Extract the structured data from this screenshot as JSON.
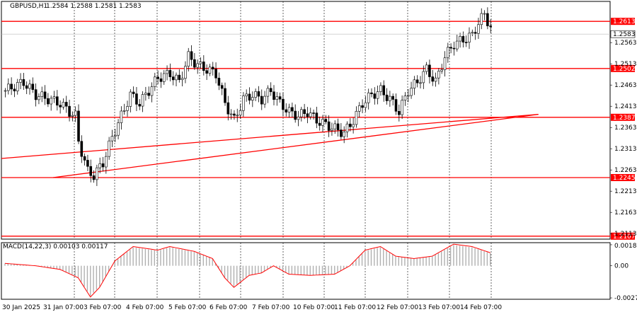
{
  "chart_data": [
    {
      "type": "candlestick",
      "title": "GBPUSD,H1",
      "ohlc_text": "1.2584 1.2588 1.2581 1.2583",
      "current_price": "1.2583",
      "y_ticks": [
        "1.2613",
        "1.2583",
        "1.2563",
        "1.2513",
        "1.2502",
        "1.2463",
        "1.2413",
        "1.2387",
        "1.2363",
        "1.2313",
        "1.2263",
        "1.2245",
        "1.2213",
        "1.2163",
        "1.2113",
        "1.2107"
      ],
      "ylim": [
        1.21,
        1.266
      ],
      "x_tick_labels": [
        "30 Jan 2025",
        "31 Jan 07:00",
        "3 Feb 07:00",
        "4 Feb 07:00",
        "5 Feb 07:00",
        "6 Feb 07:00",
        "7 Feb 07:00",
        "10 Feb 07:00",
        "11 Feb 07:00",
        "12 Feb 07:00",
        "13 Feb 07:00",
        "14 Feb 07:00"
      ],
      "horizontal_levels": [
        {
          "label": "1.2613",
          "value": 1.2613
        },
        {
          "label": "1.2502",
          "value": 1.2502
        },
        {
          "label": "1.2387",
          "value": 1.2387
        },
        {
          "label": "1.2245",
          "value": 1.2245
        },
        {
          "label": "1.2107",
          "value": 1.2107
        }
      ],
      "trendlines": [
        {
          "from": {
            "bar": 0,
            "price": 1.229
          },
          "to": {
            "bar": 175,
            "price": 1.2394
          }
        },
        {
          "from": {
            "bar": 16,
            "price": 1.2245
          },
          "to": {
            "bar": 175,
            "price": 1.2394
          }
        }
      ],
      "close_path": [
        [
          0,
          1.245
        ],
        [
          6,
          1.247
        ],
        [
          10,
          1.244
        ],
        [
          14,
          1.243
        ],
        [
          18,
          1.242
        ],
        [
          21,
          1.24
        ],
        [
          23,
          1.239
        ],
        [
          24,
          1.233
        ],
        [
          27,
          1.226
        ],
        [
          29,
          1.225
        ],
        [
          32,
          1.228
        ],
        [
          35,
          1.234
        ],
        [
          38,
          1.239
        ],
        [
          41,
          1.244
        ],
        [
          44,
          1.242
        ],
        [
          47,
          1.245
        ],
        [
          50,
          1.248
        ],
        [
          54,
          1.249
        ],
        [
          57,
          1.247
        ],
        [
          60,
          1.253
        ],
        [
          63,
          1.251
        ],
        [
          66,
          1.25
        ],
        [
          69,
          1.249
        ],
        [
          72,
          1.242
        ],
        [
          75,
          1.238
        ],
        [
          78,
          1.243
        ],
        [
          81,
          1.244
        ],
        [
          84,
          1.243
        ],
        [
          87,
          1.245
        ],
        [
          90,
          1.242
        ],
        [
          93,
          1.24
        ],
        [
          96,
          1.239
        ],
        [
          99,
          1.24
        ],
        [
          102,
          1.238
        ],
        [
          105,
          1.237
        ],
        [
          108,
          1.236
        ],
        [
          111,
          1.235
        ],
        [
          114,
          1.238
        ],
        [
          117,
          1.242
        ],
        [
          120,
          1.244
        ],
        [
          123,
          1.245
        ],
        [
          126,
          1.243
        ],
        [
          129,
          1.24
        ],
        [
          132,
          1.245
        ],
        [
          135,
          1.247
        ],
        [
          138,
          1.25
        ],
        [
          141,
          1.247
        ],
        [
          144,
          1.253
        ],
        [
          147,
          1.256
        ],
        [
          150,
          1.257
        ],
        [
          153,
          1.258
        ],
        [
          155,
          1.261
        ],
        [
          157,
          1.263
        ],
        [
          160,
          1.2583
        ]
      ],
      "bar_count": 160
    },
    {
      "type": "histogram",
      "title": "MACD(14,22,3) 0.00103 0.00117",
      "y_ticks": [
        "0.00182",
        "0.00",
        "-0.00278"
      ],
      "ylim": [
        -0.0029,
        0.002
      ],
      "values_path": [
        [
          0,
          0.0002
        ],
        [
          10,
          0.0
        ],
        [
          18,
          -0.0003
        ],
        [
          24,
          -0.001
        ],
        [
          28,
          -0.0026
        ],
        [
          31,
          -0.0018
        ],
        [
          36,
          0.0004
        ],
        [
          42,
          0.0016
        ],
        [
          50,
          0.0013
        ],
        [
          54,
          0.0016
        ],
        [
          62,
          0.0012
        ],
        [
          68,
          0.0006
        ],
        [
          72,
          -0.001
        ],
        [
          75,
          -0.0018
        ],
        [
          80,
          -0.0008
        ],
        [
          84,
          -0.0006
        ],
        [
          88,
          0.0
        ],
        [
          93,
          -0.0007
        ],
        [
          100,
          -0.0008
        ],
        [
          108,
          -0.0007
        ],
        [
          113,
          0.0
        ],
        [
          118,
          0.0013
        ],
        [
          123,
          0.0016
        ],
        [
          128,
          0.0008
        ],
        [
          134,
          0.0006
        ],
        [
          140,
          0.0008
        ],
        [
          147,
          0.0018
        ],
        [
          153,
          0.0016
        ],
        [
          160,
          0.001
        ]
      ]
    }
  ],
  "colors": {
    "candle": "#000000",
    "level_line": "#ff0000",
    "level_label_bg": "#ff0000",
    "level_label_text": "#ffffff",
    "signal_line": "#ff0000",
    "histogram": "#b0b0b0",
    "grid": "#000000",
    "price_tag_bg": "#ffffff"
  }
}
